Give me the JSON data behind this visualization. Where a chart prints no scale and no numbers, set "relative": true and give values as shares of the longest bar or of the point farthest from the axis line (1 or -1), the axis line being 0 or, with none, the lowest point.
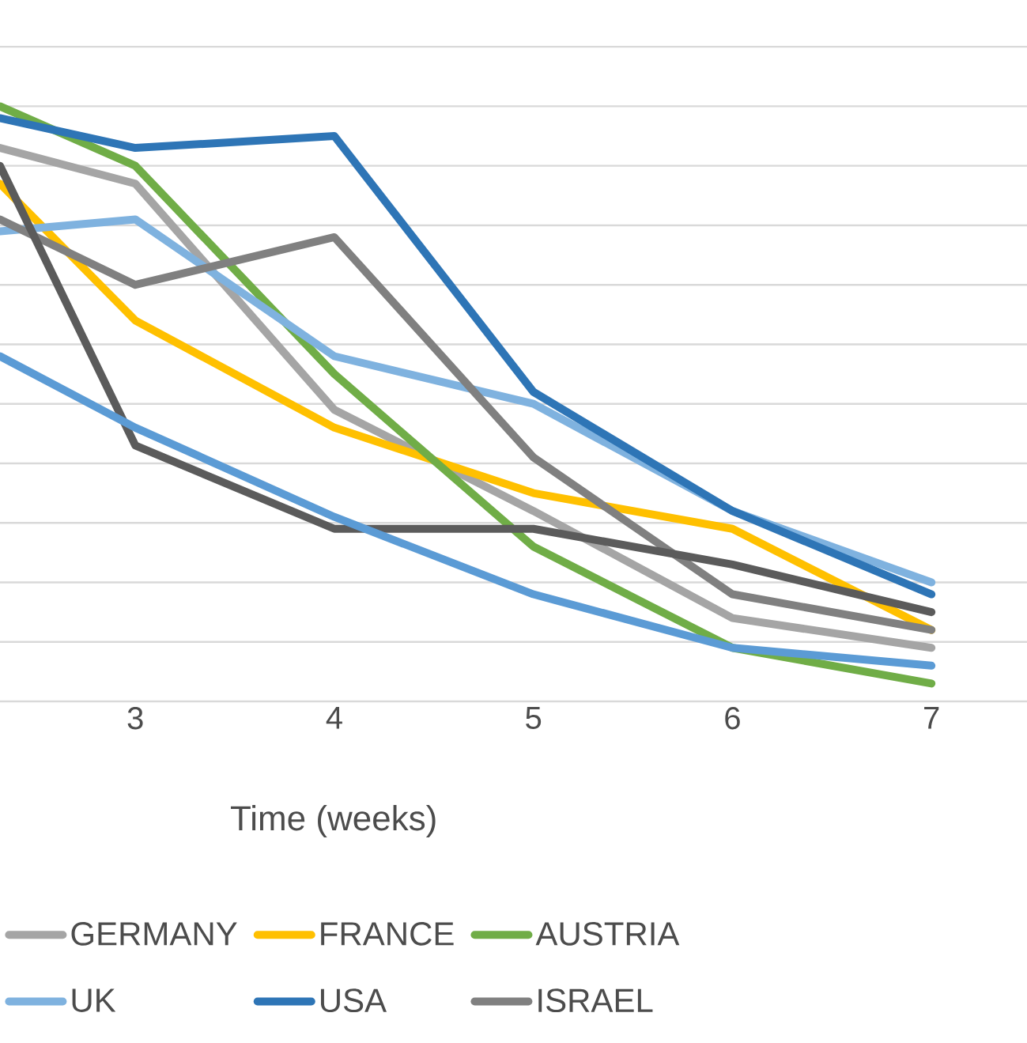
{
  "chart_data": {
    "type": "line",
    "relative": true,
    "xlabel": "Time (weeks)",
    "xlim": [
      2.32,
      7.48
    ],
    "xticks": [
      3,
      4,
      5,
      6,
      7
    ],
    "x": [
      2.32,
      3,
      4,
      5,
      6,
      7
    ],
    "series": [
      {
        "name": "GERMANY",
        "color": "#a5a5a5",
        "values": [
          0.93,
          0.87,
          0.49,
          0.32,
          0.14,
          0.09
        ]
      },
      {
        "name": "FRANCE",
        "color": "#ffc000",
        "values": [
          0.87,
          0.64,
          0.46,
          0.35,
          0.29,
          0.12
        ]
      },
      {
        "name": "AUSTRIA",
        "color": "#70ad47",
        "values": [
          1.0,
          0.9,
          0.55,
          0.26,
          0.09,
          0.03
        ]
      },
      {
        "name": "UK",
        "color": "#7fb2df",
        "values": [
          0.79,
          0.81,
          0.58,
          0.5,
          0.32,
          0.2
        ]
      },
      {
        "name": "USA",
        "color": "#2e75b6",
        "values": [
          0.98,
          0.93,
          0.95,
          0.52,
          0.32,
          0.18
        ]
      },
      {
        "name": "ISRAEL",
        "color": "#808080",
        "values": [
          0.81,
          0.7,
          0.78,
          0.41,
          0.18,
          0.12
        ]
      },
      {
        "color": "#5b5b5b",
        "values": [
          0.9,
          0.43,
          0.29,
          0.29,
          0.23,
          0.15
        ]
      },
      {
        "color": "#5b9bd5",
        "values": [
          0.58,
          0.46,
          0.31,
          0.18,
          0.09,
          0.06
        ]
      }
    ],
    "grid": "y",
    "legend": "bottom",
    "marker": "none",
    "line_style": "solid"
  }
}
